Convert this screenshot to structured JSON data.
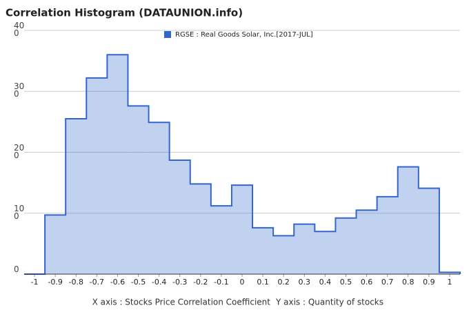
{
  "chart_data": {
    "type": "histogram",
    "title": "Correlation Histogram (DATAUNION.info)",
    "xlabel": "X axis : Stocks Price Correlation Coefficient",
    "ylabel": "Y axis : Quantity of stocks",
    "series": [
      {
        "name": "RGSE : Real Goods Solar, Inc.[2017-JUL]",
        "color": "#3366cc",
        "values": [
          0,
          97,
          255,
          322,
          360,
          276,
          249,
          187,
          148,
          112,
          146,
          76,
          63,
          82,
          70,
          92,
          105,
          127,
          176,
          141,
          3
        ]
      }
    ],
    "bins": [
      -1.05,
      -0.95,
      -0.85,
      -0.75,
      -0.65,
      -0.55,
      -0.45,
      -0.35,
      -0.25,
      -0.15,
      -0.05,
      0.05,
      0.15,
      0.25,
      0.35,
      0.45,
      0.55,
      0.65,
      0.75,
      0.85,
      0.95,
      1.05
    ],
    "xlim": [
      -1.05,
      1.05
    ],
    "xticks": [
      -1,
      -0.9,
      -0.8,
      -0.7,
      -0.6,
      -0.5,
      -0.4,
      -0.3,
      -0.2,
      -0.1,
      0,
      0.1,
      0.2,
      0.3,
      0.4,
      0.5,
      0.6,
      0.7,
      0.8,
      0.9,
      1
    ],
    "ylim": [
      0,
      400
    ],
    "yticks": [
      0,
      100,
      200,
      300,
      400
    ],
    "grid": true
  }
}
